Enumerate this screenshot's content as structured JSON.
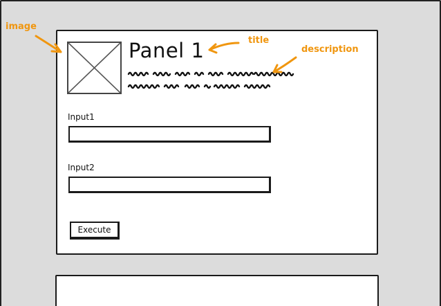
{
  "panel1": {
    "title": "Panel 1",
    "description": "lorem ipsum dolor sit amet consectetur adipiscing elit sed do eiusmod tempor"
  },
  "form": {
    "input1_label": "Input1",
    "input1_value": "",
    "input2_label": "Input2",
    "input2_value": "",
    "execute_label": "Execute"
  },
  "annotations": {
    "image": "image",
    "title": "title",
    "description": "description"
  },
  "colors": {
    "annotation": "#f0960f",
    "frame_background": "#dcdcdc",
    "panel_background": "#ffffff",
    "stroke": "#1a1a1a"
  },
  "icons": {
    "image_placeholder": "image-placeholder-icon",
    "arrow": "annotation-arrow-icon"
  }
}
